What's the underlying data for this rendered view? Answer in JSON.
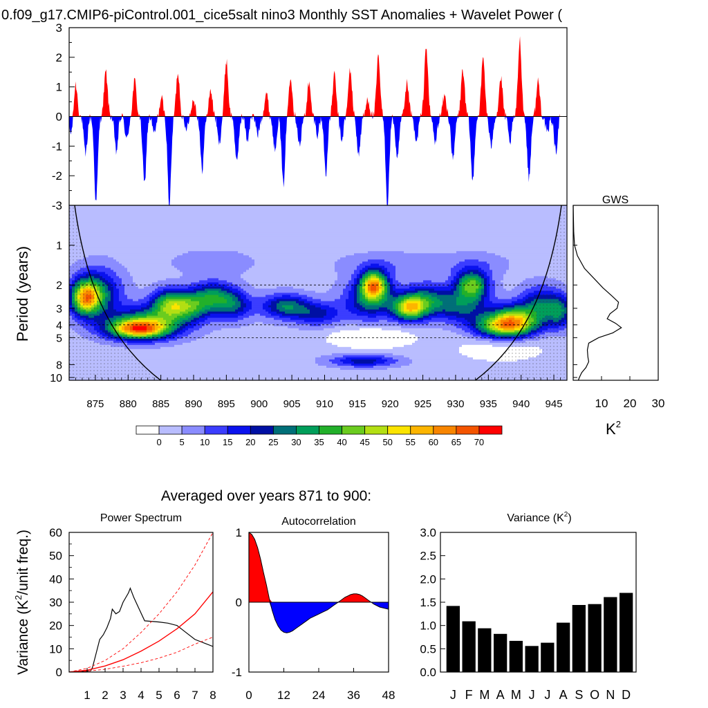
{
  "title": "0.f09_g17.CMIP6-piControl.001_cice5salt nino3 Monthly SST Anomalies + Wavelet Power (",
  "colors": {
    "positive": "#ff0000",
    "negative": "#0000ff",
    "bar": "#000000"
  },
  "chart_data": [
    {
      "id": "sst",
      "type": "area",
      "x_range": [
        871,
        947
      ],
      "ylim": [
        -3,
        3
      ],
      "y_ticks": [
        "3",
        "2",
        "1",
        "0",
        "-1",
        "-2",
        "-3"
      ],
      "note_series": "monthly anomalies (approximate, traced from figure)",
      "events": [
        [
          871.3,
          -0.6
        ],
        [
          872.0,
          1.1
        ],
        [
          873.5,
          -1.3
        ],
        [
          875.1,
          -2.9
        ],
        [
          876.6,
          1.5
        ],
        [
          878.2,
          -1.2
        ],
        [
          879.8,
          -0.8
        ],
        [
          881.0,
          1.2
        ],
        [
          882.5,
          -2.3
        ],
        [
          884.0,
          -0.6
        ],
        [
          885.1,
          0.6
        ],
        [
          886.3,
          -3.0
        ],
        [
          887.6,
          1.5
        ],
        [
          888.8,
          -0.4
        ],
        [
          890.0,
          0.6
        ],
        [
          891.3,
          -1.8
        ],
        [
          892.6,
          0.9
        ],
        [
          893.9,
          -0.9
        ],
        [
          895.0,
          1.9
        ],
        [
          896.6,
          -1.6
        ],
        [
          898.2,
          -0.8
        ],
        [
          899.8,
          -0.6
        ],
        [
          901.1,
          0.8
        ],
        [
          902.4,
          -1.1
        ],
        [
          903.7,
          -2.3
        ],
        [
          904.8,
          1.4
        ],
        [
          906.2,
          -1.0
        ],
        [
          907.6,
          1.1
        ],
        [
          908.9,
          -0.6
        ],
        [
          910.2,
          -1.9
        ],
        [
          911.5,
          1.4
        ],
        [
          912.6,
          -0.8
        ],
        [
          913.9,
          1.6
        ],
        [
          915.2,
          -1.3
        ],
        [
          916.6,
          0.6
        ],
        [
          918.2,
          2.0
        ],
        [
          919.6,
          -3.0
        ],
        [
          921.1,
          -1.5
        ],
        [
          922.6,
          1.1
        ],
        [
          924.0,
          -0.9
        ],
        [
          925.5,
          2.4
        ],
        [
          926.9,
          -0.9
        ],
        [
          928.3,
          0.7
        ],
        [
          929.6,
          -1.5
        ],
        [
          931.1,
          1.6
        ],
        [
          932.6,
          -2.2
        ],
        [
          934.2,
          2.0
        ],
        [
          935.4,
          -1.0
        ],
        [
          936.9,
          1.3
        ],
        [
          938.3,
          -0.9
        ],
        [
          939.8,
          2.6
        ],
        [
          941.2,
          -2.1
        ],
        [
          942.6,
          1.2
        ],
        [
          944.0,
          -0.6
        ],
        [
          945.3,
          -1.2
        ],
        [
          946.5,
          0.5
        ]
      ]
    },
    {
      "id": "wavelet",
      "type": "heatmap",
      "x_ticks": [
        "875",
        "880",
        "885",
        "890",
        "895",
        "900",
        "905",
        "910",
        "915",
        "920",
        "925",
        "930",
        "935",
        "940",
        "945"
      ],
      "x_tick_values": [
        875,
        880,
        885,
        890,
        895,
        900,
        905,
        910,
        915,
        920,
        925,
        930,
        935,
        940,
        945
      ],
      "y_label": "Period (years)",
      "y_ticks": [
        "1",
        "2",
        "3",
        "4",
        "5",
        "8",
        "10"
      ],
      "y_tick_values": [
        1,
        2,
        3,
        4,
        5,
        8,
        10
      ],
      "period_range": [
        0.5,
        10.5
      ],
      "color_levels": [
        "0",
        "5",
        "10",
        "15",
        "20",
        "25",
        "30",
        "35",
        "40",
        "45",
        "50",
        "55",
        "60",
        "65",
        "70"
      ],
      "palette": [
        "#ffffff",
        "#b9bdff",
        "#8a8cff",
        "#3b3dff",
        "#0a12ee",
        "#0010a4",
        "#006f78",
        "#009e5a",
        "#22b02a",
        "#6bcc1f",
        "#b3df13",
        "#fbe400",
        "#fdb500",
        "#f88500",
        "#f45400",
        "#ff0000"
      ],
      "blobs": [
        {
          "x": 873.5,
          "p": 2.5,
          "sx": 2.2,
          "sy": 0.42,
          "v": 46
        },
        {
          "x": 875.5,
          "p": 2.3,
          "sx": 3.5,
          "sy": 0.6,
          "v": 24
        },
        {
          "x": 881.5,
          "p": 4.3,
          "sx": 4.5,
          "sy": 0.25,
          "v": 52
        },
        {
          "x": 883.5,
          "p": 3.7,
          "sx": 6.0,
          "sy": 0.4,
          "v": 26
        },
        {
          "x": 886.0,
          "p": 2.7,
          "sx": 2.5,
          "sy": 0.35,
          "v": 22
        },
        {
          "x": 889.0,
          "p": 2.9,
          "sx": 3.5,
          "sy": 0.35,
          "v": 30
        },
        {
          "x": 893.0,
          "p": 2.4,
          "sx": 3.5,
          "sy": 0.35,
          "v": 24
        },
        {
          "x": 896.0,
          "p": 2.9,
          "sx": 3.0,
          "sy": 0.35,
          "v": 20
        },
        {
          "x": 904.0,
          "p": 2.9,
          "sx": 3.5,
          "sy": 0.3,
          "v": 26
        },
        {
          "x": 909.0,
          "p": 3.3,
          "sx": 3.5,
          "sy": 0.3,
          "v": 18
        },
        {
          "x": 917.5,
          "p": 2.0,
          "sx": 2.0,
          "sy": 0.35,
          "v": 50
        },
        {
          "x": 917.0,
          "p": 2.6,
          "sx": 4.0,
          "sy": 0.5,
          "v": 24
        },
        {
          "x": 923.0,
          "p": 3.0,
          "sx": 2.5,
          "sy": 0.3,
          "v": 42
        },
        {
          "x": 925.5,
          "p": 2.6,
          "sx": 3.5,
          "sy": 0.4,
          "v": 24
        },
        {
          "x": 932.5,
          "p": 2.0,
          "sx": 2.5,
          "sy": 0.35,
          "v": 38
        },
        {
          "x": 931.0,
          "p": 2.9,
          "sx": 4.0,
          "sy": 0.4,
          "v": 22
        },
        {
          "x": 937.5,
          "p": 4.1,
          "sx": 4.5,
          "sy": 0.3,
          "v": 46
        },
        {
          "x": 939.0,
          "p": 3.5,
          "sx": 3.5,
          "sy": 0.35,
          "v": 28
        },
        {
          "x": 943.0,
          "p": 2.8,
          "sx": 3.0,
          "sy": 0.45,
          "v": 22
        },
        {
          "x": 946.0,
          "p": 3.2,
          "sx": 2.0,
          "sy": 0.4,
          "v": 22
        },
        {
          "x": 916.0,
          "p": 7.5,
          "sx": 5.0,
          "sy": 0.15,
          "v": 20
        },
        {
          "x": 893.0,
          "p": 1.35,
          "sx": 6.0,
          "sy": 0.3,
          "v": 6
        },
        {
          "x": 920.0,
          "p": 1.4,
          "sx": 8.0,
          "sy": 0.3,
          "v": 6
        },
        {
          "x": 933.0,
          "p": 1.4,
          "sx": 5.0,
          "sy": 0.3,
          "v": 6
        },
        {
          "x": 917.0,
          "p": 5.0,
          "sx": 6.0,
          "sy": 0.25,
          "v": -12
        },
        {
          "x": 937.0,
          "p": 6.0,
          "sx": 8.0,
          "sy": 0.4,
          "v": -6
        }
      ],
      "dashed_periods": [
        2,
        4,
        5
      ]
    },
    {
      "id": "gws",
      "type": "line",
      "title": "GWS",
      "x_ticks": [
        "10",
        "20",
        "30"
      ],
      "x_tick_values": [
        10,
        20,
        30
      ],
      "xlim": [
        0,
        30
      ],
      "xlabel_base": "K",
      "xlabel_sup": "2",
      "points": [
        [
          0.0,
          0.5
        ],
        [
          0.2,
          0.8
        ],
        [
          0.5,
          1.0
        ],
        [
          1.5,
          1.2
        ],
        [
          4.0,
          1.5
        ],
        [
          7.5,
          1.8
        ],
        [
          10.5,
          2.1
        ],
        [
          13.5,
          2.4
        ],
        [
          16.0,
          2.7
        ],
        [
          15.5,
          3.0
        ],
        [
          13.0,
          3.3
        ],
        [
          12.0,
          3.6
        ],
        [
          15.0,
          3.9
        ],
        [
          17.0,
          4.2
        ],
        [
          14.0,
          4.6
        ],
        [
          9.0,
          5.0
        ],
        [
          5.5,
          5.5
        ],
        [
          5.0,
          6.2
        ],
        [
          5.2,
          7.0
        ],
        [
          5.5,
          7.6
        ],
        [
          4.5,
          8.4
        ],
        [
          3.0,
          9.2
        ],
        [
          2.2,
          10.0
        ],
        [
          1.8,
          10.5
        ]
      ]
    },
    {
      "id": "colorbar",
      "type": "heatmap",
      "labels": [
        "0",
        "5",
        "10",
        "15",
        "20",
        "25",
        "30",
        "35",
        "40",
        "45",
        "50",
        "55",
        "60",
        "65",
        "70"
      ]
    },
    {
      "id": "power",
      "type": "line",
      "title": "Power Spectrum",
      "ylabel_pre": "Variance (K",
      "ylabel_sup": "2",
      "ylabel_post": "/unit freq.)",
      "xlim": [
        0,
        8
      ],
      "ylim": [
        0,
        60
      ],
      "x_ticks": [
        "1",
        "2",
        "3",
        "4",
        "5",
        "6",
        "7",
        "8"
      ],
      "x_tick_values": [
        1,
        2,
        3,
        4,
        5,
        6,
        7,
        8
      ],
      "y_ticks": [
        "0",
        "10",
        "20",
        "30",
        "40",
        "50",
        "60"
      ],
      "y_tick_values": [
        0,
        10,
        20,
        30,
        40,
        50,
        60
      ],
      "series": [
        {
          "points": [
            [
              0,
              0
            ],
            [
              1.2,
              0.5
            ],
            [
              1.3,
              2
            ],
            [
              1.5,
              8
            ],
            [
              1.7,
              14
            ],
            [
              1.9,
              16
            ],
            [
              2.1,
              19
            ],
            [
              2.3,
              23
            ],
            [
              2.4,
              27
            ],
            [
              2.6,
              25
            ],
            [
              2.8,
              26
            ],
            [
              3.0,
              30
            ],
            [
              3.3,
              34
            ],
            [
              3.4,
              36
            ],
            [
              3.6,
              32
            ],
            [
              3.9,
              27
            ],
            [
              4.2,
              22
            ],
            [
              5.0,
              21.5
            ],
            [
              5.5,
              21
            ],
            [
              6.0,
              20
            ],
            [
              6.5,
              17
            ],
            [
              7.0,
              14
            ],
            [
              7.5,
              12.5
            ],
            [
              8,
              11
            ]
          ]
        },
        {
          "points": [
            [
              0,
              0
            ],
            [
              1,
              0.8
            ],
            [
              2,
              2.6
            ],
            [
              3,
              5.3
            ],
            [
              4,
              9
            ],
            [
              5,
              13.3
            ],
            [
              6,
              18.6
            ],
            [
              7,
              25
            ],
            [
              8,
              34.5
            ]
          ]
        },
        {
          "points": [
            [
              0,
              0
            ],
            [
              1,
              1.6
            ],
            [
              2,
              5
            ],
            [
              3,
              10
            ],
            [
              4,
              17
            ],
            [
              5,
              25
            ],
            [
              6,
              34.5
            ],
            [
              7,
              46
            ],
            [
              8,
              60
            ]
          ]
        },
        {
          "points": [
            [
              0,
              0
            ],
            [
              1,
              0.4
            ],
            [
              2,
              1.2
            ],
            [
              3,
              2.5
            ],
            [
              4,
              4
            ],
            [
              5,
              6
            ],
            [
              6,
              8.5
            ],
            [
              7,
              12
            ],
            [
              8,
              15
            ]
          ]
        }
      ]
    },
    {
      "id": "autocorr",
      "type": "area",
      "title": "Autocorrelation",
      "xlim": [
        0,
        48
      ],
      "ylim": [
        -1,
        1
      ],
      "x_ticks": [
        "0",
        "12",
        "24",
        "36",
        "48"
      ],
      "x_tick_values": [
        0,
        12,
        24,
        36,
        48
      ],
      "y_ticks": [
        "1",
        "0",
        "-1"
      ],
      "y_tick_values": [
        1,
        0,
        -1
      ],
      "points": [
        [
          0,
          1
        ],
        [
          1,
          0.97
        ],
        [
          2,
          0.9
        ],
        [
          3,
          0.78
        ],
        [
          4,
          0.62
        ],
        [
          5,
          0.43
        ],
        [
          6,
          0.25
        ],
        [
          7,
          0.05
        ],
        [
          8,
          -0.12
        ],
        [
          9,
          -0.25
        ],
        [
          10,
          -0.34
        ],
        [
          11,
          -0.4
        ],
        [
          12,
          -0.43
        ],
        [
          13,
          -0.44
        ],
        [
          14,
          -0.43
        ],
        [
          15,
          -0.41
        ],
        [
          16,
          -0.38
        ],
        [
          17,
          -0.35
        ],
        [
          18,
          -0.32
        ],
        [
          19,
          -0.29
        ],
        [
          20,
          -0.26
        ],
        [
          21,
          -0.23
        ],
        [
          22,
          -0.21
        ],
        [
          23,
          -0.19
        ],
        [
          24,
          -0.17
        ],
        [
          25,
          -0.15
        ],
        [
          26,
          -0.13
        ],
        [
          27,
          -0.11
        ],
        [
          28,
          -0.08
        ],
        [
          29,
          -0.05
        ],
        [
          30,
          -0.02
        ],
        [
          31,
          0.01
        ],
        [
          32,
          0.04
        ],
        [
          33,
          0.07
        ],
        [
          34,
          0.09
        ],
        [
          35,
          0.11
        ],
        [
          36,
          0.12
        ],
        [
          37,
          0.12
        ],
        [
          38,
          0.11
        ],
        [
          39,
          0.09
        ],
        [
          40,
          0.06
        ],
        [
          41,
          0.03
        ],
        [
          42,
          0.0
        ],
        [
          43,
          -0.03
        ],
        [
          44,
          -0.05
        ],
        [
          45,
          -0.07
        ],
        [
          46,
          -0.08
        ],
        [
          47,
          -0.09
        ],
        [
          48,
          -0.1
        ]
      ]
    },
    {
      "id": "variance",
      "type": "bar",
      "title_pre": "Variance (K",
      "title_sup": "2",
      "title_post": ")",
      "categories": [
        "J",
        "F",
        "M",
        "A",
        "M",
        "J",
        "J",
        "A",
        "S",
        "O",
        "N",
        "D"
      ],
      "values": [
        1.42,
        1.09,
        0.94,
        0.82,
        0.67,
        0.56,
        0.63,
        1.06,
        1.44,
        1.46,
        1.61,
        1.7
      ],
      "ylim": [
        0,
        3
      ],
      "y_ticks": [
        "0.0",
        "0.5",
        "1.0",
        "1.5",
        "2.0",
        "2.5",
        "3.0"
      ],
      "y_tick_values": [
        0,
        0.5,
        1,
        1.5,
        2,
        2.5,
        3
      ]
    }
  ],
  "bottom_title": "Averaged over years 871 to 900:"
}
